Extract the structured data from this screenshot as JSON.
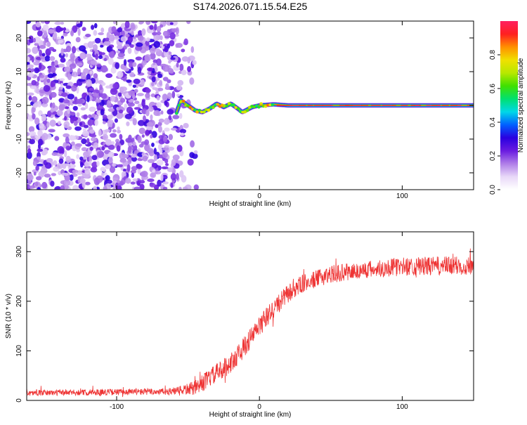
{
  "title": "S174.2026.071.15.54.E25",
  "chart_data": [
    {
      "type": "heatmap",
      "id": "spectrogram",
      "xlabel": "Height of straight line (km)",
      "ylabel": "Frequency (Hz)",
      "xlim": [
        -163,
        150
      ],
      "ylim": [
        -25,
        25
      ],
      "xticks": [
        -100,
        0,
        100
      ],
      "yticks": [
        -20,
        -10,
        0,
        10,
        20
      ],
      "xtick_labels": [
        "-100",
        "0",
        "100"
      ],
      "ytick_labels": [
        "-20",
        "-10",
        "0",
        "10",
        "20"
      ],
      "noise_region_x": [
        -163,
        -55
      ],
      "signal_start_x": -58,
      "signal_track": [
        {
          "x": -58,
          "y": -2
        },
        {
          "x": -55,
          "y": 1.5
        },
        {
          "x": -50,
          "y": 0
        },
        {
          "x": -45,
          "y": -1.5
        },
        {
          "x": -40,
          "y": -2
        },
        {
          "x": -35,
          "y": -1
        },
        {
          "x": -30,
          "y": 0.5
        },
        {
          "x": -25,
          "y": -0.5
        },
        {
          "x": -20,
          "y": 0.5
        },
        {
          "x": -15,
          "y": -1
        },
        {
          "x": -12,
          "y": -2
        },
        {
          "x": -5,
          "y": -0.5
        },
        {
          "x": 0,
          "y": 0
        },
        {
          "x": 10,
          "y": 0.3
        },
        {
          "x": 20,
          "y": 0
        },
        {
          "x": 150,
          "y": 0
        }
      ],
      "colorbar": {
        "label": "Normalized spectral amplitude",
        "range": [
          0,
          1
        ],
        "ticks": [
          0,
          0.2,
          0.4,
          0.6,
          0.8
        ],
        "tick_labels": [
          "0.0",
          "0.2",
          "0.4",
          "0.6",
          "0.8"
        ],
        "colors": [
          "#ffffff",
          "#e8d8f8",
          "#b07ee8",
          "#6a1be0",
          "#2a00e0",
          "#0060ff",
          "#00d8e8",
          "#00e070",
          "#40e000",
          "#b8e800",
          "#f0e000",
          "#ff9000",
          "#ff2020",
          "#ff2060"
        ]
      }
    },
    {
      "type": "line",
      "id": "snr",
      "xlabel": "Height of straight line (km)",
      "ylabel": "SNR (10 * v/v)",
      "xlim": [
        -163,
        150
      ],
      "ylim": [
        0,
        340
      ],
      "xticks": [
        -100,
        0,
        100
      ],
      "yticks": [
        0,
        100,
        200,
        300
      ],
      "xtick_labels": [
        "-100",
        "0",
        "100"
      ],
      "ytick_labels": [
        "0",
        "100",
        "200",
        "300"
      ],
      "series": [
        {
          "name": "SNR",
          "color": "#ee3333",
          "trend": [
            {
              "x": -163,
              "y": 15
            },
            {
              "x": -60,
              "y": 18
            },
            {
              "x": -45,
              "y": 25
            },
            {
              "x": -35,
              "y": 45
            },
            {
              "x": -20,
              "y": 75
            },
            {
              "x": -10,
              "y": 110
            },
            {
              "x": 0,
              "y": 150
            },
            {
              "x": 10,
              "y": 185
            },
            {
              "x": 20,
              "y": 215
            },
            {
              "x": 30,
              "y": 235
            },
            {
              "x": 50,
              "y": 255
            },
            {
              "x": 80,
              "y": 265
            },
            {
              "x": 100,
              "y": 270
            },
            {
              "x": 150,
              "y": 272
            }
          ],
          "noise": [
            {
              "x": -163,
              "y": 8
            },
            {
              "x": -60,
              "y": 10
            },
            {
              "x": -40,
              "y": 25
            },
            {
              "x": -20,
              "y": 30
            },
            {
              "x": 0,
              "y": 30
            },
            {
              "x": 40,
              "y": 25
            },
            {
              "x": 150,
              "y": 28
            }
          ]
        }
      ]
    }
  ]
}
